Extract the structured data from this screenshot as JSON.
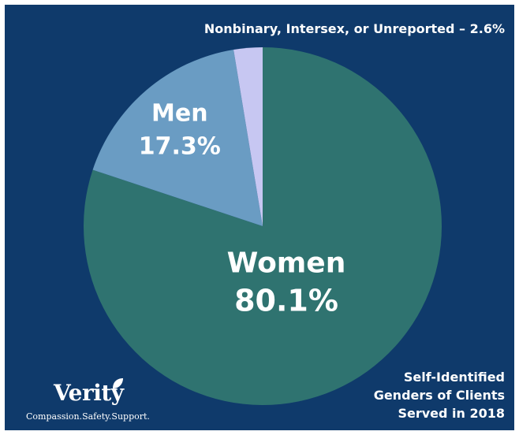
{
  "chart_data": {
    "type": "pie",
    "title": "",
    "slices": [
      {
        "label": "Women",
        "value": 80.1,
        "display": "80.1%",
        "color": "#2f7370"
      },
      {
        "label": "Men",
        "value": 17.3,
        "display": "17.3%",
        "color": "#6a9cc3"
      },
      {
        "label": "Nonbinary, Intersex, or Unreported",
        "value": 2.6,
        "display": "2.6%",
        "color": "#c7c7f2"
      }
    ],
    "annotation_outside": "Nonbinary, Intersex, or Unreported – 2.6%",
    "caption_lines": [
      "Self-Identified",
      "Genders of Clients",
      "Served in 2018"
    ],
    "start_angle_deg": 0,
    "direction": "clockwise"
  },
  "brand": {
    "name": "Verity",
    "tagline": "Compassion.Safety.Support.",
    "background_color": "#0f3a6b",
    "text_color": "#ffffff"
  }
}
